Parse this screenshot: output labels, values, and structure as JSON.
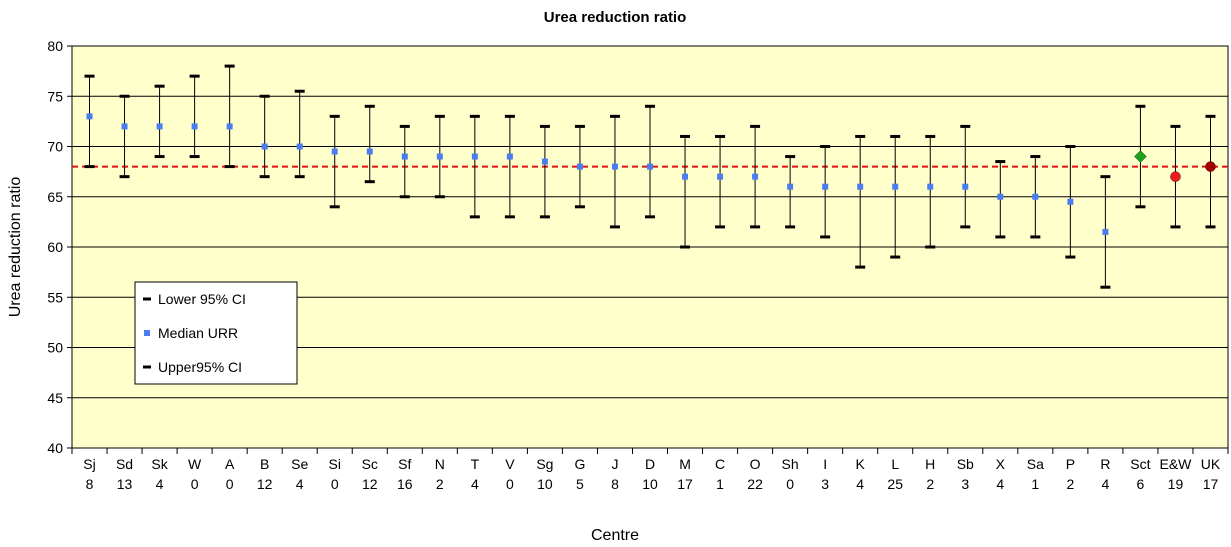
{
  "chart_data": {
    "type": "scatter",
    "title": "Urea reduction ratio",
    "xlabel": "Centre",
    "ylabel": "Urea reduction ratio",
    "ylim": [
      40,
      80
    ],
    "yticks": [
      40,
      45,
      50,
      55,
      60,
      65,
      70,
      75,
      80
    ],
    "grid": true,
    "reference_line": 68,
    "categories": [
      "Sj",
      "Sd",
      "Sk",
      "W",
      "A",
      "B",
      "Se",
      "Si",
      "Sc",
      "Sf",
      "N",
      "T",
      "V",
      "Sg",
      "G",
      "J",
      "D",
      "M",
      "C",
      "O",
      "Sh",
      "I",
      "K",
      "L",
      "H",
      "Sb",
      "X",
      "Sa",
      "P",
      "R",
      "Sct",
      "E&W",
      "UK"
    ],
    "category_counts": [
      "8",
      "13",
      "4",
      "0",
      "0",
      "12",
      "4",
      "0",
      "12",
      "16",
      "2",
      "4",
      "0",
      "10",
      "5",
      "8",
      "10",
      "17",
      "1",
      "22",
      "0",
      "3",
      "4",
      "25",
      "2",
      "3",
      "4",
      "1",
      "2",
      "4",
      "6",
      "19",
      "17"
    ],
    "series": [
      {
        "name": "Lower 95% CI",
        "values": [
          68,
          67,
          69,
          69,
          68,
          67,
          67,
          64,
          66.5,
          65,
          65,
          63,
          63,
          63,
          64,
          62,
          63,
          60,
          62,
          62,
          62,
          61,
          58,
          59,
          60,
          62,
          61,
          61,
          59,
          56,
          64,
          62,
          62
        ]
      },
      {
        "name": "Median URR",
        "values": [
          73,
          72,
          72,
          72,
          72,
          70,
          70,
          69.5,
          69.5,
          69,
          69,
          69,
          69,
          68.5,
          68,
          68,
          68,
          67,
          67,
          67,
          66,
          66,
          66,
          66,
          66,
          66,
          65,
          65,
          64.5,
          61.5,
          69,
          67,
          68
        ]
      },
      {
        "name": "Upper95% CI",
        "values": [
          77,
          75,
          76,
          77,
          78,
          75,
          75.5,
          73,
          74,
          72,
          73,
          73,
          73,
          72,
          72,
          73,
          74,
          71,
          71,
          72,
          69,
          70,
          71,
          71,
          71,
          72,
          68.5,
          69,
          70,
          67,
          74,
          72,
          73
        ]
      }
    ],
    "point_colors": [
      "#4a7ef0",
      "#4a7ef0",
      "#4a7ef0",
      "#4a7ef0",
      "#4a7ef0",
      "#4a7ef0",
      "#4a7ef0",
      "#4a7ef0",
      "#4a7ef0",
      "#4a7ef0",
      "#4a7ef0",
      "#4a7ef0",
      "#4a7ef0",
      "#4a7ef0",
      "#4a7ef0",
      "#4a7ef0",
      "#4a7ef0",
      "#4a7ef0",
      "#4a7ef0",
      "#4a7ef0",
      "#4a7ef0",
      "#4a7ef0",
      "#4a7ef0",
      "#4a7ef0",
      "#4a7ef0",
      "#4a7ef0",
      "#4a7ef0",
      "#4a7ef0",
      "#4a7ef0",
      "#4a7ef0",
      "#1f9e1f",
      "#ee1c1c",
      "#a00000"
    ],
    "point_shapes": [
      "square",
      "square",
      "square",
      "square",
      "square",
      "square",
      "square",
      "square",
      "square",
      "square",
      "square",
      "square",
      "square",
      "square",
      "square",
      "square",
      "square",
      "square",
      "square",
      "square",
      "square",
      "square",
      "square",
      "square",
      "square",
      "square",
      "square",
      "square",
      "square",
      "square",
      "diamond",
      "circle",
      "circle"
    ],
    "legend": {
      "position": "lower-left",
      "entries": [
        "Lower 95% CI",
        "Median URR",
        "Upper95% CI"
      ]
    },
    "colors": {
      "plot_background": "#ffffcc",
      "gridline": "#000000",
      "error_bar": "#000000",
      "reference_line": "#dd1111",
      "median_marker": "#4a7ef0"
    }
  }
}
